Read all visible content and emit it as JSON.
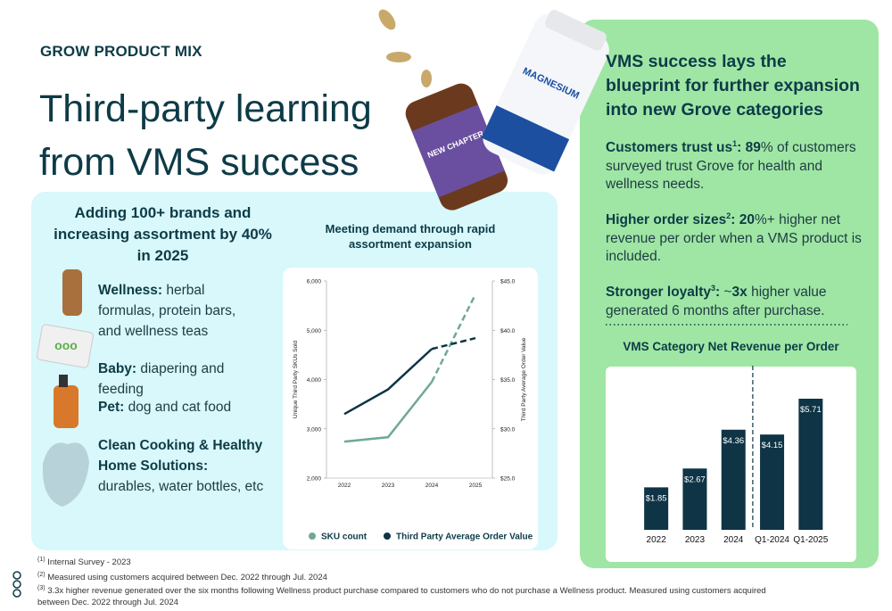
{
  "header": {
    "eyebrow": "GROW PRODUCT MIX",
    "title": "Third-party learning from VMS success"
  },
  "assortment": {
    "heading": "Adding 100+ brands and increasing assortment by 40% in 2025",
    "items": [
      {
        "label": "Wellness:",
        "text": " herbal formulas, protein bars, and wellness teas"
      },
      {
        "label": "Baby:",
        "text": " diapering and feeding"
      },
      {
        "label": "Pet:",
        "text": " dog and cat food"
      },
      {
        "label": "Clean Cooking & Healthy Home Solutions:",
        "text": " durables, water bottles, etc"
      }
    ]
  },
  "highlights": {
    "heading": "VMS success lays the blueprint for further expansion into new Grove categories",
    "paragraphs": [
      {
        "parts": [
          {
            "b": "Customers trust us"
          },
          {
            "sup": "1"
          },
          {
            "b": ": 89"
          },
          {
            "t": "% of customers surveyed trust Grove for health and wellness needs."
          }
        ]
      },
      {
        "parts": [
          {
            "b": "Higher order sizes"
          },
          {
            "sup": "2"
          },
          {
            "b": ": 20"
          },
          {
            "t": "%+ higher net revenue per order when a VMS product is included."
          }
        ]
      },
      {
        "parts": [
          {
            "b": "Stronger loyalty"
          },
          {
            "sup": "3"
          },
          {
            "b": ":"
          },
          {
            "t": " ~"
          },
          {
            "b": "3x"
          },
          {
            "t": " higher value generated 6 months after purchase."
          }
        ]
      }
    ]
  },
  "footnotes": [
    {
      "mark": "(1)",
      "text": " Internal Survey - 2023"
    },
    {
      "mark": "(2)",
      "text": " Measured using customers acquired between Dec. 2022 through Jul. 2024"
    },
    {
      "mark": "(3)",
      "text": " 3.3x higher revenue generated over the six months following Wellness product purchase compared to customers who do not purchase a Wellness product.  Measured using customers acquired between Dec. 2022 through Jul. 2024"
    }
  ],
  "chart_data": [
    {
      "type": "line",
      "title": "Meeting demand through rapid assortment expansion",
      "categories": [
        "2022",
        "2023",
        "2024",
        "2025"
      ],
      "y_label": "Unique Third Party SKUs Sold",
      "y2_label": "Third Party Average Order Value",
      "ylim": [
        2000,
        6000
      ],
      "yticks": [
        {
          "value": 2000,
          "label": "2,000"
        },
        {
          "value": 3000,
          "label": "3,000"
        },
        {
          "value": 4000,
          "label": "4,000"
        },
        {
          "value": 5000,
          "label": "5,000"
        },
        {
          "value": 6000,
          "label": "6,000"
        }
      ],
      "y2lim": [
        25,
        45
      ],
      "y2ticks": [
        {
          "value": 25,
          "label": "$25.0"
        },
        {
          "value": 30,
          "label": "$30.0"
        },
        {
          "value": 35,
          "label": "$35.0"
        },
        {
          "value": 40,
          "label": "$40.0"
        },
        {
          "value": 45,
          "label": "$45.0"
        }
      ],
      "series": [
        {
          "name": "SKU count",
          "color": "#6fa898",
          "values": [
            2740,
            2830,
            3950,
            5730
          ],
          "dash_from": "2024"
        },
        {
          "name": "Third Party Average Order Value",
          "color": "#0e3446",
          "axis": "y2",
          "values": [
            31.5,
            34.0,
            38.1,
            39.2
          ],
          "dash_from": "2024"
        }
      ]
    },
    {
      "type": "bar",
      "title": "VMS Category Net Revenue per Order",
      "categories": [
        "2022",
        "2023",
        "2024",
        "Q1-2024",
        "Q1-2025"
      ],
      "values": [
        1.85,
        2.67,
        4.36,
        4.15,
        5.71
      ],
      "value_labels": [
        "$1.85",
        "$2.67",
        "$4.36",
        "$4.15",
        "$5.71"
      ],
      "color": "#0e3446",
      "divider_after": "2024"
    }
  ]
}
